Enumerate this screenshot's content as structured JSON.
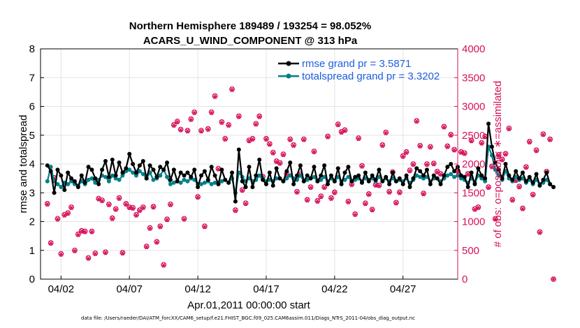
{
  "title_line1": "Northern Hemisphere 189489 / 193254 = 98.052%",
  "title_line2": "ACARS_U_WIND_COMPONENT @ 313 hPa",
  "footer": "data file: /Users/raeder/DAI/ATM_forcXX/CAM6_setup/f.e21.FHIST_BGC.f09_025.CAM6assim.011/Diags_NTrS_2011-04/obs_diag_output.nc",
  "colors": {
    "rmse": "#000000",
    "spread": "#00808a",
    "obs": "#d6105a",
    "legend_text": "#1f5fe0"
  },
  "chart_data": {
    "type": "line",
    "xlabel": "Apr.01,2011 00:00:00 start",
    "ylabel_left": "rmse and totalspread",
    "ylabel_right": "# of obs: o=possible; ∗=assimilated",
    "xlim_days": [
      0.5,
      31.0
    ],
    "ylim_left": [
      0,
      8
    ],
    "ylim_right": [
      0,
      4000
    ],
    "yticks_left": [
      "0",
      "1",
      "2",
      "3",
      "4",
      "5",
      "6",
      "7",
      "8"
    ],
    "yticks_right": [
      "0",
      "500",
      "1000",
      "1500",
      "2000",
      "2500",
      "3000",
      "3500",
      "4000"
    ],
    "xticks": [
      {
        "day": 2,
        "label": "04/02"
      },
      {
        "day": 7,
        "label": "04/07"
      },
      {
        "day": 12,
        "label": "04/12"
      },
      {
        "day": 17,
        "label": "04/17"
      },
      {
        "day": 22,
        "label": "04/22"
      },
      {
        "day": 27,
        "label": "04/27"
      }
    ],
    "grid": true,
    "legend_position": "top-right",
    "x_start_day": 1.0,
    "x_step_days": 0.25,
    "series": [
      {
        "name": "rmse grand pr = 3.5871",
        "axis": "left",
        "values": [
          3.95,
          3.75,
          3.0,
          3.8,
          3.6,
          3.1,
          3.7,
          3.5,
          3.4,
          3.2,
          3.6,
          3.35,
          3.9,
          3.8,
          3.5,
          3.3,
          3.8,
          4.1,
          3.55,
          4.15,
          3.6,
          4.05,
          3.7,
          3.85,
          4.35,
          4.0,
          3.7,
          3.95,
          4.1,
          3.5,
          3.95,
          3.8,
          3.55,
          3.9,
          3.8,
          4.05,
          3.45,
          3.8,
          3.4,
          3.7,
          3.6,
          3.7,
          3.55,
          3.8,
          3.2,
          3.6,
          3.75,
          3.45,
          3.9,
          3.6,
          3.3,
          3.8,
          3.45,
          3.35,
          3.7,
          2.7,
          4.5,
          3.4,
          3.2,
          3.9,
          3.2,
          3.6,
          4.15,
          3.45,
          3.3,
          3.7,
          3.25,
          3.85,
          3.5,
          3.4,
          3.75,
          4.05,
          3.3,
          3.6,
          3.95,
          3.4,
          3.6,
          3.5,
          3.9,
          3.4,
          3.6,
          3.95,
          3.3,
          3.6,
          3.4,
          3.85,
          3.3,
          3.7,
          3.9,
          3.4,
          3.55,
          3.6,
          3.35,
          3.7,
          3.4,
          3.6,
          3.45,
          3.8,
          3.4,
          3.55,
          3.3,
          3.7,
          3.4,
          3.5,
          3.3,
          3.6,
          3.2,
          3.5,
          3.85,
          3.75,
          3.6,
          3.8,
          3.3,
          3.6,
          3.5,
          3.3,
          3.6,
          3.9,
          4.0,
          3.75,
          3.9,
          3.6,
          3.55,
          3.2,
          3.7,
          3.3,
          3.85,
          3.6,
          3.5,
          5.4,
          4.6,
          4.05,
          3.8,
          3.5,
          4.0,
          3.6,
          3.45,
          3.75,
          3.5,
          3.7,
          3.4,
          3.55,
          3.35,
          3.65,
          3.25,
          3.45,
          3.7,
          3.3,
          3.2
        ]
      },
      {
        "name": "totalspread grand pr = 3.3202",
        "axis": "left",
        "values": [
          3.4,
          3.9,
          3.4,
          3.3,
          3.2,
          3.35,
          3.3,
          3.4,
          3.3,
          3.25,
          3.4,
          3.3,
          3.45,
          3.5,
          3.35,
          3.45,
          3.6,
          3.55,
          3.4,
          3.6,
          3.5,
          3.45,
          3.6,
          3.75,
          3.8,
          3.7,
          3.6,
          3.75,
          3.65,
          3.5,
          3.7,
          3.45,
          3.5,
          3.6,
          3.8,
          3.55,
          3.3,
          3.35,
          3.4,
          3.35,
          3.45,
          3.4,
          3.5,
          3.45,
          3.3,
          3.3,
          3.35,
          3.4,
          3.3,
          3.35,
          3.3,
          3.4,
          3.45,
          3.35,
          3.5,
          3.0,
          3.7,
          3.55,
          3.4,
          3.5,
          3.4,
          3.45,
          3.6,
          3.5,
          3.4,
          3.45,
          3.4,
          3.5,
          3.5,
          3.4,
          3.5,
          3.6,
          3.5,
          3.45,
          3.6,
          3.4,
          3.45,
          3.5,
          3.55,
          3.4,
          3.45,
          3.55,
          3.4,
          3.5,
          3.4,
          3.55,
          3.4,
          3.45,
          3.55,
          3.4,
          3.45,
          3.5,
          3.4,
          3.5,
          3.45,
          3.5,
          3.4,
          3.55,
          3.4,
          3.5,
          3.4,
          3.5,
          3.4,
          3.45,
          3.4,
          3.5,
          3.35,
          3.45,
          3.6,
          3.55,
          3.5,
          3.55,
          3.4,
          3.5,
          3.5,
          3.4,
          3.5,
          3.6,
          3.65,
          3.55,
          3.6,
          3.5,
          3.45,
          3.35,
          3.5,
          3.35,
          3.6,
          3.5,
          3.4,
          4.6,
          4.3,
          3.8,
          3.6,
          3.45,
          3.75,
          3.5,
          3.4,
          3.55,
          3.45,
          3.5,
          3.35,
          3.45,
          3.3,
          3.45,
          3.3,
          3.35,
          3.45,
          3.3,
          3.2
        ]
      },
      {
        "name": "possible",
        "axis": "right",
        "values": [
          1310,
          630,
          1760,
          1050,
          440,
          1120,
          1150,
          1250,
          500,
          780,
          840,
          830,
          370,
          830,
          450,
          1400,
          1370,
          470,
          1300,
          1060,
          1220,
          1410,
          460,
          1310,
          1250,
          1240,
          1120,
          1200,
          1250,
          570,
          890,
          1260,
          650,
          920,
          250,
          1040,
          1300,
          2680,
          2740,
          2600,
          1050,
          2580,
          2780,
          2900,
          1430,
          2580,
          920,
          2610,
          2900,
          3180,
          1920,
          2730,
          2440,
          2680,
          3300,
          1200,
          2830,
          1550,
          1320,
          2410,
          2440,
          2700,
          2830,
          1780,
          2440,
          2350,
          2200,
          2050,
          2020,
          2170,
          1830,
          2430,
          2330,
          1520,
          1820,
          2430,
          1380,
          1600,
          2220,
          1360,
          1440,
          1600,
          2480,
          1410,
          1510,
          2690,
          2560,
          2590,
          1350,
          1650,
          1130,
          2450,
          1970,
          1320,
          1480,
          1210,
          1640,
          1630,
          2330,
          2550,
          1520,
          1860,
          1330,
          1510,
          2140,
          2210,
          1890,
          2000,
          2750,
          2320,
          1490,
          2000,
          2300,
          2010,
          1870,
          1830,
          2650,
          2310,
          2510,
          2250,
          1880,
          2210,
          2190,
          1830,
          2410,
          1220,
          1250,
          2370,
          2480,
          1600,
          1960,
          1050,
          2160,
          2080,
          2180,
          2620,
          1380,
          1720,
          1610,
          1230,
          1950,
          2390,
          1470,
          2240,
          820,
          2520,
          1870,
          2430,
          0
        ]
      },
      {
        "name": "assimilated",
        "axis": "right",
        "values": [
          1300,
          620,
          1750,
          1040,
          430,
          1110,
          1140,
          1240,
          490,
          770,
          830,
          820,
          360,
          820,
          440,
          1390,
          1360,
          460,
          1290,
          1050,
          1210,
          1400,
          450,
          1300,
          1240,
          1230,
          1110,
          1190,
          1240,
          560,
          880,
          1250,
          640,
          910,
          240,
          1030,
          1290,
          2670,
          2730,
          2590,
          1040,
          2570,
          2770,
          2890,
          1420,
          2570,
          910,
          2600,
          2890,
          3170,
          1910,
          2720,
          2430,
          2670,
          3290,
          1190,
          2820,
          1540,
          1310,
          2400,
          2430,
          2690,
          2820,
          1770,
          2430,
          2340,
          2190,
          2040,
          2010,
          2160,
          1820,
          2420,
          2320,
          1510,
          1810,
          2420,
          1370,
          1590,
          2210,
          1350,
          1430,
          1590,
          2470,
          1400,
          1500,
          2680,
          2550,
          2580,
          1340,
          1640,
          1120,
          2440,
          1960,
          1310,
          1470,
          1200,
          1630,
          1620,
          2320,
          2540,
          1510,
          1850,
          1320,
          1500,
          2130,
          2200,
          1880,
          1990,
          2740,
          2310,
          1480,
          1990,
          2290,
          2000,
          1860,
          1820,
          2640,
          2300,
          2500,
          2240,
          1870,
          2200,
          2180,
          1820,
          2400,
          1210,
          1240,
          2360,
          2470,
          1590,
          1950,
          1040,
          2150,
          2070,
          2170,
          2610,
          1370,
          1710,
          1600,
          1220,
          1940,
          2380,
          1460,
          2230,
          810,
          2510,
          1860,
          2420,
          0
        ]
      }
    ]
  }
}
